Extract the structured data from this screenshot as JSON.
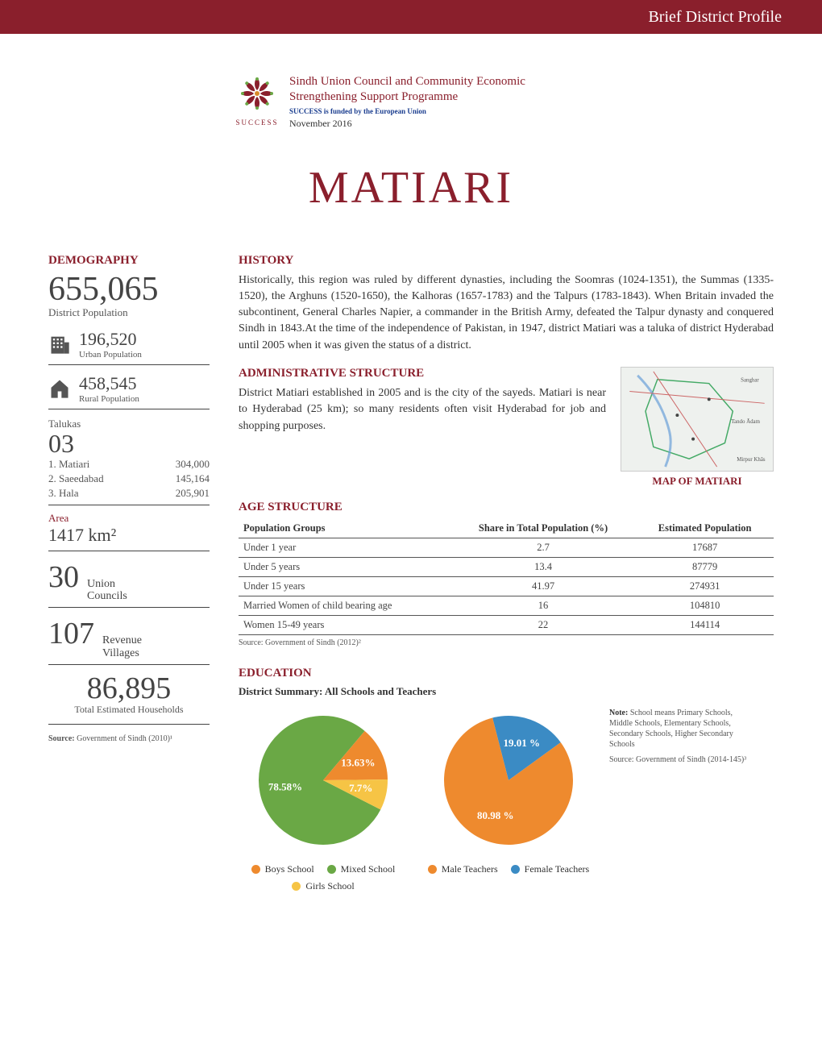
{
  "header": {
    "title": "Brief District Profile"
  },
  "logo": {
    "label": "SUCCESS",
    "org_title": "Sindh Union Council and Community Economic Strengthening Support Programme",
    "funded": "SUCCESS is funded by the European Union",
    "date": "November 2016"
  },
  "district_title": "MATIARI",
  "demography": {
    "heading": "DEMOGRAPHY",
    "population": "655,065",
    "population_label": "District Population",
    "urban": "196,520",
    "urban_label": "Urban Population",
    "rural": "458,545",
    "rural_label": "Rural Population",
    "talukas_label": "Talukas",
    "talukas_count": "03",
    "talukas": [
      {
        "name": "1. Matiari",
        "pop": "304,000"
      },
      {
        "name": "2. Saeedabad",
        "pop": "145,164"
      },
      {
        "name": "3. Hala",
        "pop": "205,901"
      }
    ],
    "area_label": "Area",
    "area_value": "1417 km²",
    "union_councils_n": "30",
    "union_councils_l": "Union Councils",
    "revenue_villages_n": "107",
    "revenue_villages_l": "Revenue Villages",
    "households_n": "86,895",
    "households_l": "Total Estimated Households",
    "source": "Source: Government of Sindh (2010)¹"
  },
  "history": {
    "heading": "HISTORY",
    "text": "Historically, this region was ruled by different dynasties, including the Soomras (1024-1351), the Summas (1335-1520), the Arghuns (1520-1650), the Kalhoras (1657-1783) and the Talpurs (1783-1843). When Britain invaded the subcontinent, General Charles Napier, a commander in the British Army, defeated the Talpur dynasty and conquered Sindh in 1843.At the time of the independence of Pakistan, in 1947, district Matiari was a taluka of district Hyderabad until 2005 when it was given the status of a district."
  },
  "admin": {
    "heading": "ADMINISTRATIVE STRUCTURE",
    "text": "District Matiari established in 2005 and is the city of the sayeds. Matiari is near to Hyderabad (25 km); so many residents often visit Hyderabad for job and shopping purposes.",
    "map_caption": "MAP OF MATIARI"
  },
  "age": {
    "heading": "AGE STRUCTURE",
    "columns": [
      "Population Groups",
      "Share in Total Population (%)",
      "Estimated Population"
    ],
    "rows": [
      [
        "Under 1 year",
        "2.7",
        "17687"
      ],
      [
        "Under 5 years",
        "13.4",
        "87779"
      ],
      [
        "Under 15 years",
        "41.97",
        "274931"
      ],
      [
        "Married Women of child bearing age",
        "16",
        "104810"
      ],
      [
        "Women 15-49 years",
        "22",
        "144114"
      ]
    ],
    "source": "Source: Government of Sindh (2012)²"
  },
  "education": {
    "heading": "EDUCATION",
    "subtitle": "District Summary: All Schools and Teachers",
    "pie1": {
      "slices": [
        {
          "label": "Boys School",
          "value": 13.63,
          "color": "#ee8a2e",
          "display": "13.63%"
        },
        {
          "label": "Girls School",
          "value": 7.7,
          "color": "#f6c445",
          "display": "7.7%"
        },
        {
          "label": "Mixed School",
          "value": 78.58,
          "color": "#6aa845",
          "display": "78.58%"
        }
      ],
      "legend": [
        {
          "label": "Boys School",
          "color": "#ee8a2e"
        },
        {
          "label": "Mixed School",
          "color": "#6aa845"
        },
        {
          "label": "Girls School",
          "color": "#f6c445"
        }
      ]
    },
    "pie2": {
      "slices": [
        {
          "label": "Male Teachers",
          "value": 80.98,
          "color": "#ee8a2e",
          "display": "80.98 %"
        },
        {
          "label": "Female Teachers",
          "value": 19.01,
          "color": "#3b8bc4",
          "display": "19.01 %"
        }
      ],
      "legend": [
        {
          "label": "Male Teachers",
          "color": "#ee8a2e"
        },
        {
          "label": "Female Teachers",
          "color": "#3b8bc4"
        }
      ]
    },
    "note_label": "Note:",
    "note_text": " School means Primary Schools, Middle Schools, Elementary Schools, Secondary Schools, Higher Secondary Schools",
    "note_source": "Source: Government of Sindh (2014-145)³"
  },
  "colors": {
    "brand": "#8a1f2c",
    "text": "#333333",
    "muted": "#555555"
  }
}
